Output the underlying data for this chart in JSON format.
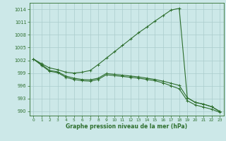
{
  "xlabel": "Graphe pression niveau de la mer (hPa)",
  "bg_color": "#cce8e8",
  "plot_bg_color": "#cce8e8",
  "grid_color": "#aacccc",
  "line_color": "#2d6e2d",
  "ylim": [
    989.0,
    1015.5
  ],
  "xlim": [
    -0.5,
    23.5
  ],
  "yticks": [
    990,
    993,
    996,
    999,
    1002,
    1005,
    1008,
    1011,
    1014
  ],
  "xticks": [
    0,
    1,
    2,
    3,
    4,
    5,
    6,
    7,
    8,
    9,
    10,
    11,
    12,
    13,
    14,
    15,
    16,
    17,
    18,
    19,
    20,
    21,
    22,
    23
  ],
  "line1_x": [
    0,
    1,
    2,
    3,
    4,
    5,
    6,
    7,
    8,
    9,
    10,
    11,
    12,
    13,
    14,
    15,
    16,
    17,
    18,
    19,
    20,
    21,
    22,
    23
  ],
  "line1_y": [
    1002.3,
    1001.0,
    999.6,
    999.3,
    998.3,
    997.8,
    997.5,
    997.4,
    997.8,
    998.9,
    998.7,
    998.5,
    998.3,
    998.1,
    997.8,
    997.5,
    997.1,
    996.6,
    996.1,
    993.2,
    992.1,
    991.7,
    991.1,
    990.0
  ],
  "line2_x": [
    0,
    1,
    2,
    3,
    4,
    5,
    6,
    7,
    8,
    9,
    10,
    11,
    12,
    13,
    14,
    15,
    16,
    17,
    18,
    19,
    20,
    21,
    22,
    23
  ],
  "line2_y": [
    1002.3,
    1001.2,
    1000.2,
    999.8,
    999.2,
    999.0,
    999.2,
    999.6,
    1001.0,
    1002.5,
    1004.0,
    1005.5,
    1007.0,
    1008.5,
    1009.8,
    1011.2,
    1012.5,
    1013.8,
    1014.2,
    993.2,
    992.1,
    991.7,
    991.1,
    990.0
  ],
  "line3_x": [
    0,
    1,
    2,
    3,
    4,
    5,
    6,
    7,
    8,
    9,
    10,
    11,
    12,
    13,
    14,
    15,
    16,
    17,
    18,
    19,
    20,
    21,
    22,
    23
  ],
  "line3_y": [
    1002.3,
    1000.8,
    999.4,
    999.1,
    998.0,
    997.5,
    997.2,
    997.1,
    997.5,
    998.6,
    998.4,
    998.2,
    998.0,
    997.8,
    997.5,
    997.2,
    996.7,
    996.0,
    995.3,
    992.5,
    991.5,
    991.0,
    990.5,
    989.8
  ]
}
